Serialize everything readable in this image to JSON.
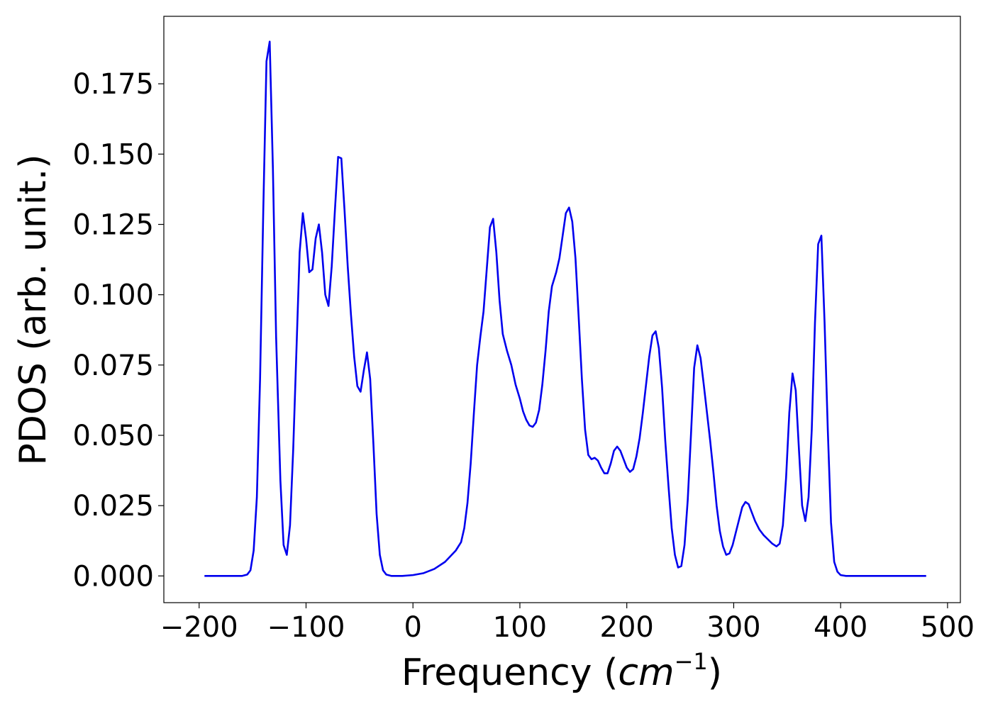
{
  "chart_data": {
    "type": "line",
    "xlabel_prefix": "Frequency (",
    "xlabel_unit": "cm",
    "xlabel_exp": "−1",
    "xlabel_suffix": ")",
    "ylabel": "PDOS (arb. unit.)",
    "xlim": [
      -233,
      512
    ],
    "ylim": [
      -0.0095,
      0.199
    ],
    "x_ticks": [
      -200,
      -100,
      0,
      100,
      200,
      300,
      400,
      500
    ],
    "x_tick_labels": [
      "−200",
      "−100",
      "0",
      "100",
      "200",
      "300",
      "400",
      "500"
    ],
    "y_ticks": [
      0,
      0.025,
      0.05,
      0.075,
      0.1,
      0.125,
      0.15,
      0.175
    ],
    "y_tick_labels": [
      "0.000",
      "0.025",
      "0.050",
      "0.075",
      "0.100",
      "0.125",
      "0.150",
      "0.175"
    ],
    "grid": false,
    "series": [
      {
        "color": "#0000ee",
        "points": [
          [
            -195,
            0
          ],
          [
            -160,
            0
          ],
          [
            -155,
            0.0005
          ],
          [
            -152,
            0.002
          ],
          [
            -149,
            0.009
          ],
          [
            -146,
            0.028
          ],
          [
            -143,
            0.07
          ],
          [
            -140,
            0.13
          ],
          [
            -137,
            0.183
          ],
          [
            -134,
            0.19
          ],
          [
            -131,
            0.145
          ],
          [
            -128,
            0.085
          ],
          [
            -124,
            0.034
          ],
          [
            -121,
            0.011
          ],
          [
            -118,
            0.0075
          ],
          [
            -115,
            0.018
          ],
          [
            -112,
            0.045
          ],
          [
            -109,
            0.08
          ],
          [
            -106,
            0.115
          ],
          [
            -103,
            0.129
          ],
          [
            -100,
            0.12
          ],
          [
            -97,
            0.108
          ],
          [
            -94,
            0.109
          ],
          [
            -91,
            0.12
          ],
          [
            -88,
            0.125
          ],
          [
            -85,
            0.115
          ],
          [
            -82,
            0.1
          ],
          [
            -79,
            0.096
          ],
          [
            -76,
            0.11
          ],
          [
            -73,
            0.13
          ],
          [
            -70,
            0.149
          ],
          [
            -67,
            0.1485
          ],
          [
            -64,
            0.13
          ],
          [
            -61,
            0.11
          ],
          [
            -58,
            0.093
          ],
          [
            -55,
            0.078
          ],
          [
            -52,
            0.0675
          ],
          [
            -49,
            0.0655
          ],
          [
            -46,
            0.073
          ],
          [
            -43,
            0.0795
          ],
          [
            -40,
            0.07
          ],
          [
            -37,
            0.047
          ],
          [
            -34,
            0.022
          ],
          [
            -31,
            0.0075
          ],
          [
            -28,
            0.002
          ],
          [
            -25,
            0.0005
          ],
          [
            -20,
            0
          ],
          [
            -10,
            0
          ],
          [
            0,
            0.0003
          ],
          [
            10,
            0.001
          ],
          [
            20,
            0.0025
          ],
          [
            30,
            0.005
          ],
          [
            40,
            0.009
          ],
          [
            45,
            0.012
          ],
          [
            48,
            0.017
          ],
          [
            51,
            0.026
          ],
          [
            54,
            0.04
          ],
          [
            57,
            0.058
          ],
          [
            60,
            0.075
          ],
          [
            63,
            0.085
          ],
          [
            66,
            0.094
          ],
          [
            69,
            0.109
          ],
          [
            72,
            0.124
          ],
          [
            75,
            0.127
          ],
          [
            78,
            0.115
          ],
          [
            81,
            0.098
          ],
          [
            84,
            0.086
          ],
          [
            88,
            0.08
          ],
          [
            92,
            0.075
          ],
          [
            96,
            0.068
          ],
          [
            100,
            0.063
          ],
          [
            103,
            0.0585
          ],
          [
            106,
            0.0555
          ],
          [
            109,
            0.0535
          ],
          [
            112,
            0.053
          ],
          [
            115,
            0.0545
          ],
          [
            118,
            0.059
          ],
          [
            121,
            0.068
          ],
          [
            124,
            0.08
          ],
          [
            127,
            0.094
          ],
          [
            130,
            0.103
          ],
          [
            134,
            0.108
          ],
          [
            137,
            0.113
          ],
          [
            140,
            0.121
          ],
          [
            143,
            0.129
          ],
          [
            146,
            0.131
          ],
          [
            149,
            0.126
          ],
          [
            152,
            0.113
          ],
          [
            155,
            0.092
          ],
          [
            158,
            0.07
          ],
          [
            161,
            0.052
          ],
          [
            164,
            0.043
          ],
          [
            167,
            0.0415
          ],
          [
            170,
            0.042
          ],
          [
            173,
            0.041
          ],
          [
            176,
            0.0385
          ],
          [
            179,
            0.0365
          ],
          [
            182,
            0.0365
          ],
          [
            185,
            0.04
          ],
          [
            188,
            0.0445
          ],
          [
            191,
            0.046
          ],
          [
            194,
            0.0445
          ],
          [
            197,
            0.0415
          ],
          [
            200,
            0.0385
          ],
          [
            203,
            0.037
          ],
          [
            206,
            0.038
          ],
          [
            209,
            0.0425
          ],
          [
            212,
            0.049
          ],
          [
            215,
            0.058
          ],
          [
            218,
            0.068
          ],
          [
            221,
            0.078
          ],
          [
            224,
            0.0855
          ],
          [
            227,
            0.087
          ],
          [
            230,
            0.081
          ],
          [
            233,
            0.067
          ],
          [
            236,
            0.048
          ],
          [
            239,
            0.032
          ],
          [
            242,
            0.017
          ],
          [
            245,
            0.0075
          ],
          [
            248,
            0.003
          ],
          [
            251,
            0.0035
          ],
          [
            254,
            0.011
          ],
          [
            257,
            0.027
          ],
          [
            260,
            0.05
          ],
          [
            263,
            0.074
          ],
          [
            266,
            0.082
          ],
          [
            269,
            0.0775
          ],
          [
            272,
            0.068
          ],
          [
            275,
            0.058
          ],
          [
            278,
            0.048
          ],
          [
            281,
            0.037
          ],
          [
            284,
            0.025
          ],
          [
            287,
            0.016
          ],
          [
            290,
            0.0105
          ],
          [
            293,
            0.0075
          ],
          [
            296,
            0.008
          ],
          [
            299,
            0.011
          ],
          [
            302,
            0.0155
          ],
          [
            305,
            0.02
          ],
          [
            308,
            0.0245
          ],
          [
            311,
            0.0263
          ],
          [
            314,
            0.0255
          ],
          [
            317,
            0.0225
          ],
          [
            320,
            0.0195
          ],
          [
            324,
            0.0165
          ],
          [
            328,
            0.0145
          ],
          [
            332,
            0.013
          ],
          [
            336,
            0.0115
          ],
          [
            340,
            0.0105
          ],
          [
            343,
            0.0115
          ],
          [
            346,
            0.018
          ],
          [
            349,
            0.035
          ],
          [
            352,
            0.058
          ],
          [
            355,
            0.072
          ],
          [
            358,
            0.066
          ],
          [
            361,
            0.045
          ],
          [
            364,
            0.025
          ],
          [
            367,
            0.0195
          ],
          [
            370,
            0.028
          ],
          [
            373,
            0.052
          ],
          [
            376,
            0.09
          ],
          [
            379,
            0.118
          ],
          [
            382,
            0.121
          ],
          [
            385,
            0.09
          ],
          [
            388,
            0.052
          ],
          [
            391,
            0.019
          ],
          [
            394,
            0.005
          ],
          [
            397,
            0.0015
          ],
          [
            400,
            0.0003
          ],
          [
            405,
            0
          ],
          [
            480,
            0
          ]
        ]
      }
    ]
  }
}
